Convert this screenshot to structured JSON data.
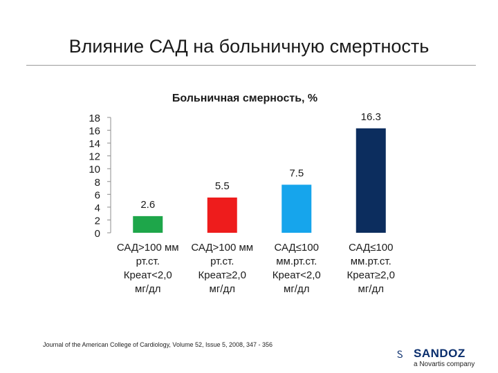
{
  "slide": {
    "title": "Влияние САД на больничную смертность",
    "source": "Journal of the American College of Cardiology, Volume 52, Issue 5, 2008, 347 - 356",
    "logo": {
      "mark": "Ꮪ",
      "brand": "SANDOZ",
      "tagline": "a Novartis company"
    }
  },
  "chart_data": {
    "type": "bar",
    "title": "Больничная смерность, %",
    "categories": [
      [
        "САД>100 мм",
        "рт.ст.",
        "Креат<2,0",
        "мг/дл"
      ],
      [
        "САД>100 мм",
        "рт.ст.",
        "Креат≥2,0",
        "мг/дл"
      ],
      [
        "САД≤100",
        "мм.рт.ст.",
        "Креат<2,0",
        "мг/дл"
      ],
      [
        "САД≤100",
        "мм.рт.ст.",
        "Креат≥2,0",
        "мг/дл"
      ]
    ],
    "values": [
      2.6,
      5.5,
      7.5,
      16.3
    ],
    "data_labels": [
      "2.6",
      "5.5",
      "7.5",
      "16.3"
    ],
    "colors": [
      "#1ea64a",
      "#ee1c1c",
      "#16a5ec",
      "#0c2d5e"
    ],
    "ylim": [
      0,
      18
    ],
    "yticks": [
      "0",
      "2",
      "4",
      "6",
      "8",
      "10",
      "12",
      "14",
      "16",
      "18"
    ],
    "grid": false,
    "legend": "none"
  }
}
